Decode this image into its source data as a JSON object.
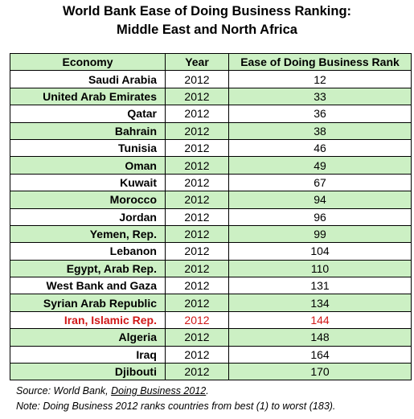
{
  "title": {
    "line1": "World Bank Ease of Doing Business Ranking:",
    "line2": "Middle East and North Africa"
  },
  "table": {
    "headers": [
      "Economy",
      "Year",
      "Ease of Doing Business Rank"
    ],
    "rows": [
      {
        "economy": "Saudi Arabia",
        "year": "2012",
        "rank": "12"
      },
      {
        "economy": "United Arab Emirates",
        "year": "2012",
        "rank": "33"
      },
      {
        "economy": "Qatar",
        "year": "2012",
        "rank": "36"
      },
      {
        "economy": "Bahrain",
        "year": "2012",
        "rank": "38"
      },
      {
        "economy": "Tunisia",
        "year": "2012",
        "rank": "46"
      },
      {
        "economy": "Oman",
        "year": "2012",
        "rank": "49"
      },
      {
        "economy": "Kuwait",
        "year": "2012",
        "rank": "67"
      },
      {
        "economy": "Morocco",
        "year": "2012",
        "rank": "94"
      },
      {
        "economy": "Jordan",
        "year": "2012",
        "rank": "96"
      },
      {
        "economy": "Yemen, Rep.",
        "year": "2012",
        "rank": "99"
      },
      {
        "economy": "Lebanon",
        "year": "2012",
        "rank": "104"
      },
      {
        "economy": "Egypt, Arab Rep.",
        "year": "2012",
        "rank": "110"
      },
      {
        "economy": "West Bank and Gaza",
        "year": "2012",
        "rank": "131"
      },
      {
        "economy": "Syrian Arab Republic",
        "year": "2012",
        "rank": "134"
      },
      {
        "economy": "Iran, Islamic Rep.",
        "year": "2012",
        "rank": "144",
        "highlight": true
      },
      {
        "economy": "Algeria",
        "year": "2012",
        "rank": "148"
      },
      {
        "economy": "Iraq",
        "year": "2012",
        "rank": "164"
      },
      {
        "economy": "Djibouti",
        "year": "2012",
        "rank": "170"
      }
    ]
  },
  "notes": {
    "source_prefix": "Source: World Bank, ",
    "source_link": "Doing Business 2012",
    "source_suffix": ".",
    "note": "Note: Doing Business 2012 ranks countries from best (1) to worst (183)."
  },
  "colors": {
    "row_band": "#ccf0c4",
    "highlight_text": "#d01818"
  }
}
